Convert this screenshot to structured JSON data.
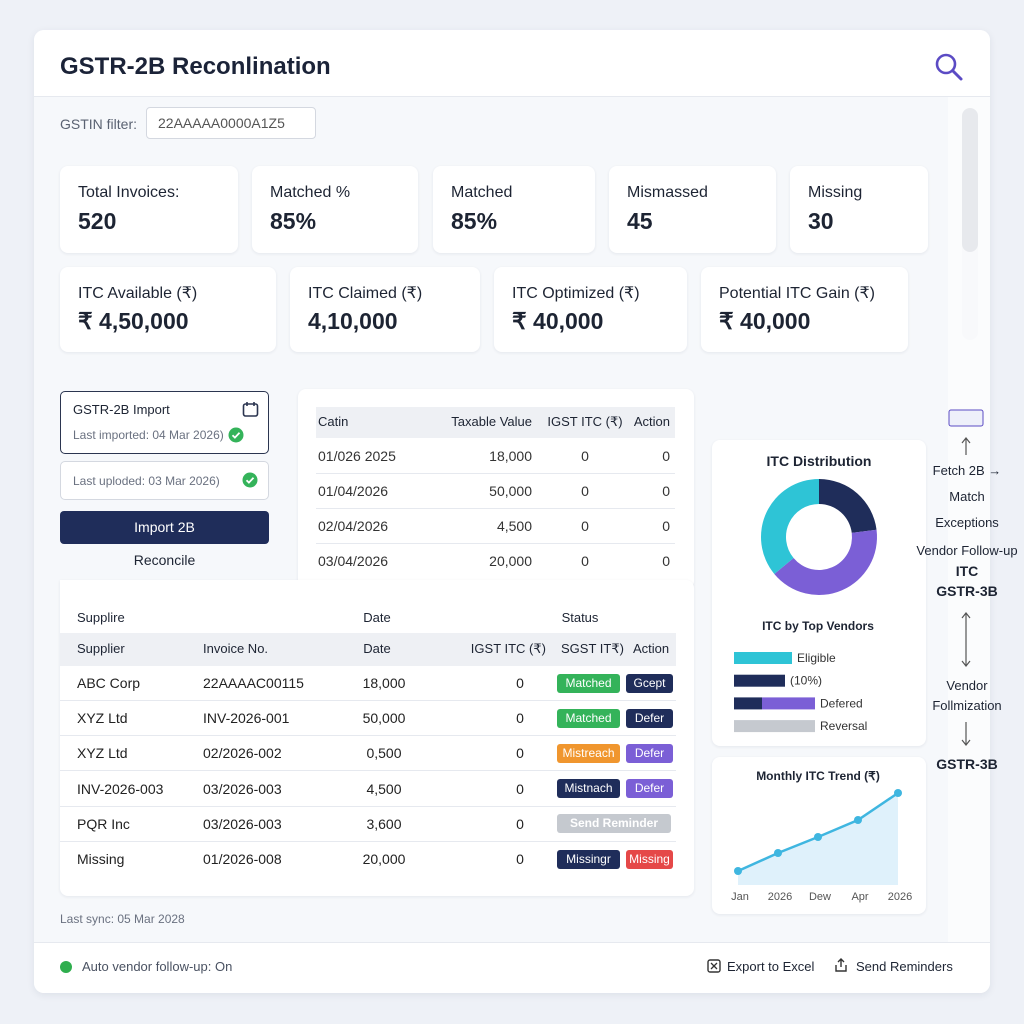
{
  "header": {
    "title": "GSTR-2B Reconlination"
  },
  "filter": {
    "label": "GSTIN filter:",
    "value": "22AAAAA0000A1Z5"
  },
  "kpis": [
    {
      "label": "Total Invoices:",
      "value": "520"
    },
    {
      "label": "Matched %",
      "value": "85%"
    },
    {
      "label": "Matched",
      "value": "85%"
    },
    {
      "label": "Mismassed",
      "value": "45"
    },
    {
      "label": "Missing",
      "value": "30"
    }
  ],
  "itc_kpis": [
    {
      "label": "ITC Available (₹)",
      "value": "₹ 4,50,000"
    },
    {
      "label": "ITC Claimed (₹)",
      "value": "4,10,000"
    },
    {
      "label": "ITC Optimized (₹)",
      "value": "₹ 40,000"
    },
    {
      "label": "Potential ITC Gain (₹)",
      "value": "₹ 40,000"
    }
  ],
  "import": {
    "title": "GSTR-2B Import",
    "last_imported": "Last imported: 04 Mar 2026)",
    "last_uploaded": "Last uploded: 03 Mar 2026)",
    "button": "Import 2B",
    "reconcile": "Reconcile"
  },
  "date_table": {
    "headers": [
      "Catin",
      "Taxable Value",
      "IGST ITC (₹)",
      "Action"
    ],
    "rows": [
      [
        "01/026 2025",
        "18,000",
        "0",
        "0"
      ],
      [
        "01/04/2026",
        "50,000",
        "0",
        "0"
      ],
      [
        "02/04/2026",
        "4,500",
        "0",
        "0"
      ],
      [
        "03/04/2026",
        "20,000",
        "0",
        "0"
      ]
    ]
  },
  "invoice_table": {
    "group_headers": [
      "Supplire",
      "Date",
      "Status"
    ],
    "headers": [
      "Supplier",
      "Invoice No.",
      "Date",
      "IGST ITC (₹)",
      "SGST IT₹)",
      "Action"
    ],
    "rows": [
      {
        "cells": [
          "ABC Corp",
          "22AAAAC00115",
          "18,000",
          "0"
        ],
        "status": {
          "text": "Matched",
          "color": "#34b35a"
        },
        "action": {
          "text": "Gcept",
          "color": "#1f2d5a"
        }
      },
      {
        "cells": [
          "XYZ Ltd",
          "INV-2026-001",
          "50,000",
          "0"
        ],
        "status": {
          "text": "Matched",
          "color": "#34b35a"
        },
        "action": {
          "text": "Defer",
          "color": "#1f2d5a"
        }
      },
      {
        "cells": [
          "XYZ Ltd",
          "02/2026-002",
          "0,500",
          "0"
        ],
        "status": {
          "text": "Mistreach",
          "color": "#f0962e"
        },
        "action": {
          "text": "Defer",
          "color": "#7b5fd6"
        }
      },
      {
        "cells": [
          "INV-2026-003",
          "03/2026-003",
          "4,500",
          "0"
        ],
        "status": {
          "text": "Mistnach",
          "color": "#1f2d5a"
        },
        "action": {
          "text": "Defer",
          "color": "#7b5fd6"
        }
      },
      {
        "cells": [
          "PQR Inc",
          "03/2026-003",
          "3,600",
          "0"
        ],
        "status": {
          "text": "Send Reminder",
          "color": "#c5c9cf"
        }
      },
      {
        "cells": [
          "Missing",
          "01/2026-008",
          "20,000",
          "0"
        ],
        "status": {
          "text": "Missingr",
          "color": "#1f2d5a"
        },
        "action": {
          "text": "Missing",
          "color": "#e54848"
        }
      }
    ]
  },
  "last_sync": "Last sync: 05 Mar 2028",
  "itc_distribution": {
    "title": "ITC Distribution",
    "values": [
      23,
      41,
      36
    ],
    "colors": [
      "#1f2d5a",
      "#7b5fd6",
      "#2ec4d6"
    ]
  },
  "top_vendors": {
    "title": "ITC by Top Vendors",
    "xlim": [
      0,
      100
    ],
    "bars": [
      {
        "label": "Eligible",
        "segments": [
          {
            "value": 58,
            "color": "#2ec4d6"
          }
        ]
      },
      {
        "label": "(10%)",
        "segments": [
          {
            "value": 51,
            "color": "#1f2d5a"
          }
        ]
      },
      {
        "label": "Defered",
        "segments": [
          {
            "value": 28,
            "color": "#1f2d5a"
          },
          {
            "value": 53,
            "color": "#7b5fd6"
          }
        ]
      },
      {
        "label": "Reversal",
        "segments": [
          {
            "value": 81,
            "color": "#c5c9cf"
          }
        ]
      }
    ]
  },
  "trend": {
    "title": "Monthly ITC Trend (₹)",
    "x": [
      "Jan",
      "2026",
      "Dew",
      "Apr",
      "2026"
    ],
    "values": [
      14,
      32,
      48,
      65,
      92
    ],
    "ylim": [
      0,
      100
    ],
    "color": "#3fb6e0"
  },
  "flow": {
    "steps": [
      "Fetch 2B →",
      "Match",
      "Exceptions",
      "Vendor Follow-up"
    ],
    "target": [
      "ITC",
      "GSTR-3B"
    ],
    "lower": [
      "Vendor",
      "Follmization"
    ],
    "final": "GSTR-3B"
  },
  "footer": {
    "status": "Auto vendor follow-up: On",
    "export": "Export to Excel",
    "reminders": "Send Reminders"
  }
}
